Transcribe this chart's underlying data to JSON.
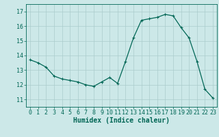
{
  "x": [
    0,
    1,
    2,
    3,
    4,
    5,
    6,
    7,
    8,
    9,
    10,
    11,
    12,
    13,
    14,
    15,
    16,
    17,
    18,
    19,
    20,
    21,
    22,
    23
  ],
  "y": [
    13.7,
    13.5,
    13.2,
    12.6,
    12.4,
    12.3,
    12.2,
    12.0,
    11.9,
    12.2,
    12.5,
    12.1,
    13.6,
    15.2,
    16.4,
    16.5,
    16.6,
    16.8,
    16.7,
    15.9,
    15.2,
    13.6,
    11.7,
    11.1
  ],
  "line_color": "#006655",
  "marker": "+",
  "marker_size": 3,
  "marker_linewidth": 0.8,
  "bg_color": "#cce8e8",
  "grid_color": "#aacccc",
  "axis_color": "#006655",
  "xlabel": "Humidex (Indice chaleur)",
  "xlabel_fontsize": 7,
  "tick_fontsize": 6,
  "ylim": [
    10.5,
    17.5
  ],
  "xlim": [
    -0.5,
    23.5
  ],
  "yticks": [
    11,
    12,
    13,
    14,
    15,
    16,
    17
  ],
  "xticks": [
    0,
    1,
    2,
    3,
    4,
    5,
    6,
    7,
    8,
    9,
    10,
    11,
    12,
    13,
    14,
    15,
    16,
    17,
    18,
    19,
    20,
    21,
    22,
    23
  ],
  "linewidth": 0.9
}
